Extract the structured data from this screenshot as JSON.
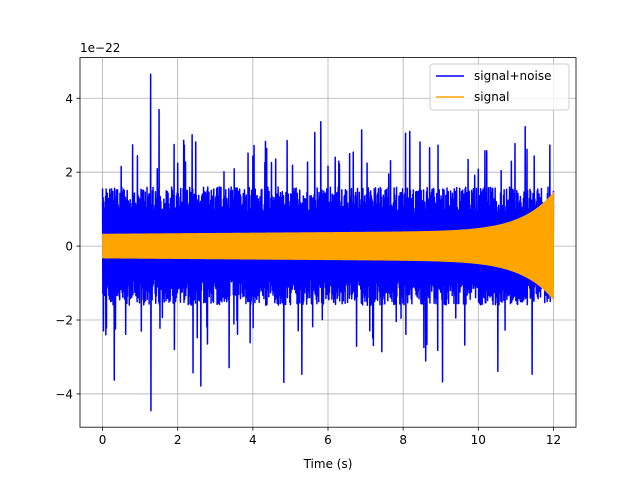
{
  "chart_data": {
    "type": "line",
    "title": "",
    "xlabel": "Time (s)",
    "ylabel": "",
    "y_scale_label": "1e−22",
    "xlim": [
      -0.6,
      12.6
    ],
    "ylim": [
      -4.9,
      5.1
    ],
    "xticks": [
      0,
      2,
      4,
      6,
      8,
      10,
      12
    ],
    "yticks": [
      -4,
      -2,
      0,
      2,
      4
    ],
    "xtick_labels": [
      "0",
      "2",
      "4",
      "6",
      "8",
      "10",
      "12"
    ],
    "ytick_labels": [
      "−4",
      "−2",
      "0",
      "2",
      "4"
    ],
    "grid": true,
    "legend_position": "top-right",
    "series": [
      {
        "name": "signal+noise",
        "color": "#0000ff",
        "x_range": [
          0,
          12
        ],
        "typical_amplitude": 1.6,
        "y_max": 4.65,
        "y_min": -4.45
      },
      {
        "name": "signal",
        "color": "#ffa500",
        "x_range": [
          0,
          12
        ],
        "envelope_start": 0.32,
        "envelope_end": 1.35
      }
    ]
  }
}
